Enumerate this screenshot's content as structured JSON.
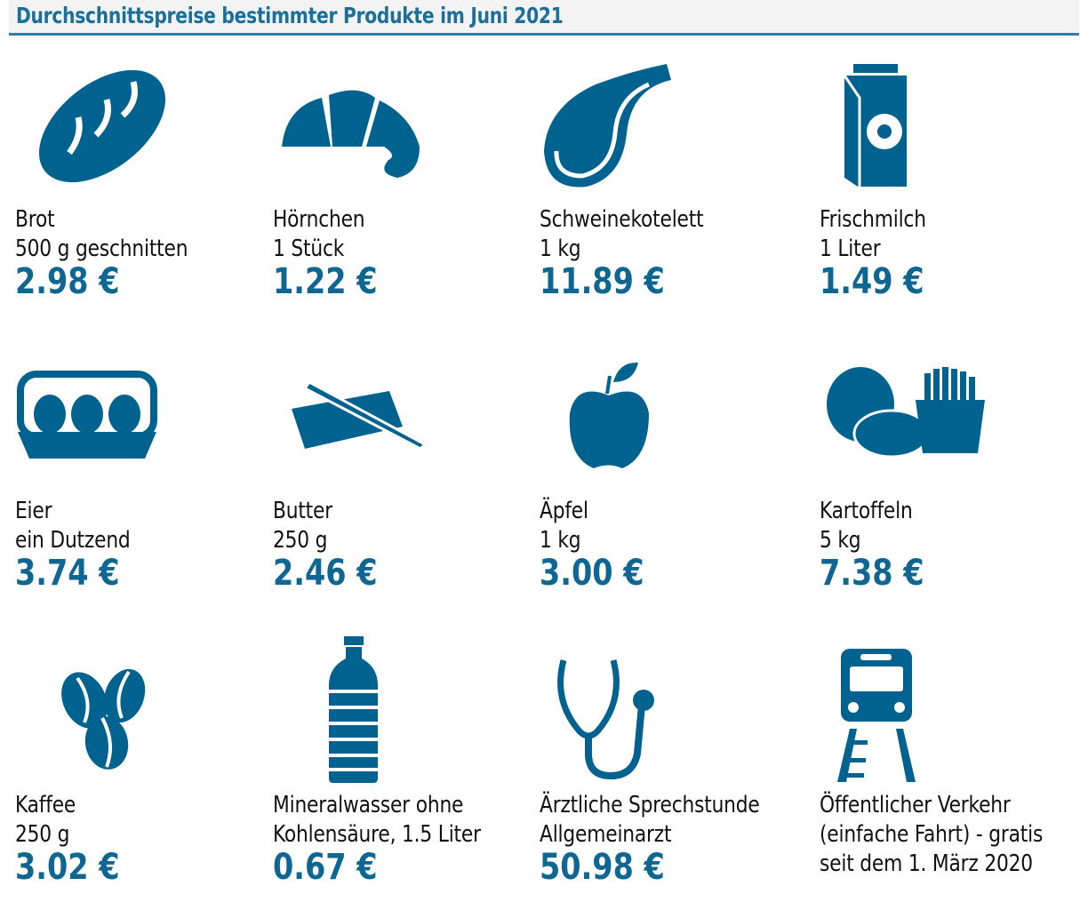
{
  "title": "Durchschnittspreise bestimmter Produkte im Juni 2021",
  "accent_color": "#00628f",
  "items": [
    {
      "icon": "bread-icon",
      "name": "Brot",
      "unit": "500 g geschnitten",
      "price": "2.98 €"
    },
    {
      "icon": "croissant-icon",
      "name": "Hörnchen",
      "unit": "1 Stück",
      "price": "1.22 €"
    },
    {
      "icon": "pork-chop-icon",
      "name": "Schweinekotelett",
      "unit": "1 kg",
      "price": "11.89 €"
    },
    {
      "icon": "milk-carton-icon",
      "name": "Frischmilch",
      "unit": "1 Liter",
      "price": "1.49 €"
    },
    {
      "icon": "egg-carton-icon",
      "name": "Eier",
      "unit": "ein Dutzend",
      "price": "3.74 €"
    },
    {
      "icon": "butter-icon",
      "name": "Butter",
      "unit": "250 g",
      "price": "2.46 €"
    },
    {
      "icon": "apple-icon",
      "name": "Äpfel",
      "unit": "1 kg",
      "price": "3.00 €"
    },
    {
      "icon": "potatoes-fries-icon",
      "name": "Kartoffeln",
      "unit": "5 kg",
      "price": "7.38 €"
    },
    {
      "icon": "coffee-beans-icon",
      "name": "Kaffee",
      "unit": "250 g",
      "price": "3.02 €"
    },
    {
      "icon": "water-bottle-icon",
      "name": "Mineralwasser ohne",
      "unit": "Kohlensäure, 1.5 Liter",
      "price": "0.67 €"
    },
    {
      "icon": "stethoscope-icon",
      "name": "Ärztliche Sprechstunde",
      "unit": "Allgemeinarzt",
      "price": "50.98 €"
    },
    {
      "icon": "train-icon",
      "name": "Öffentlicher Verkehr",
      "unit": "(einfache Fahrt) - gratis",
      "note": "seit dem 1. März 2020"
    }
  ]
}
